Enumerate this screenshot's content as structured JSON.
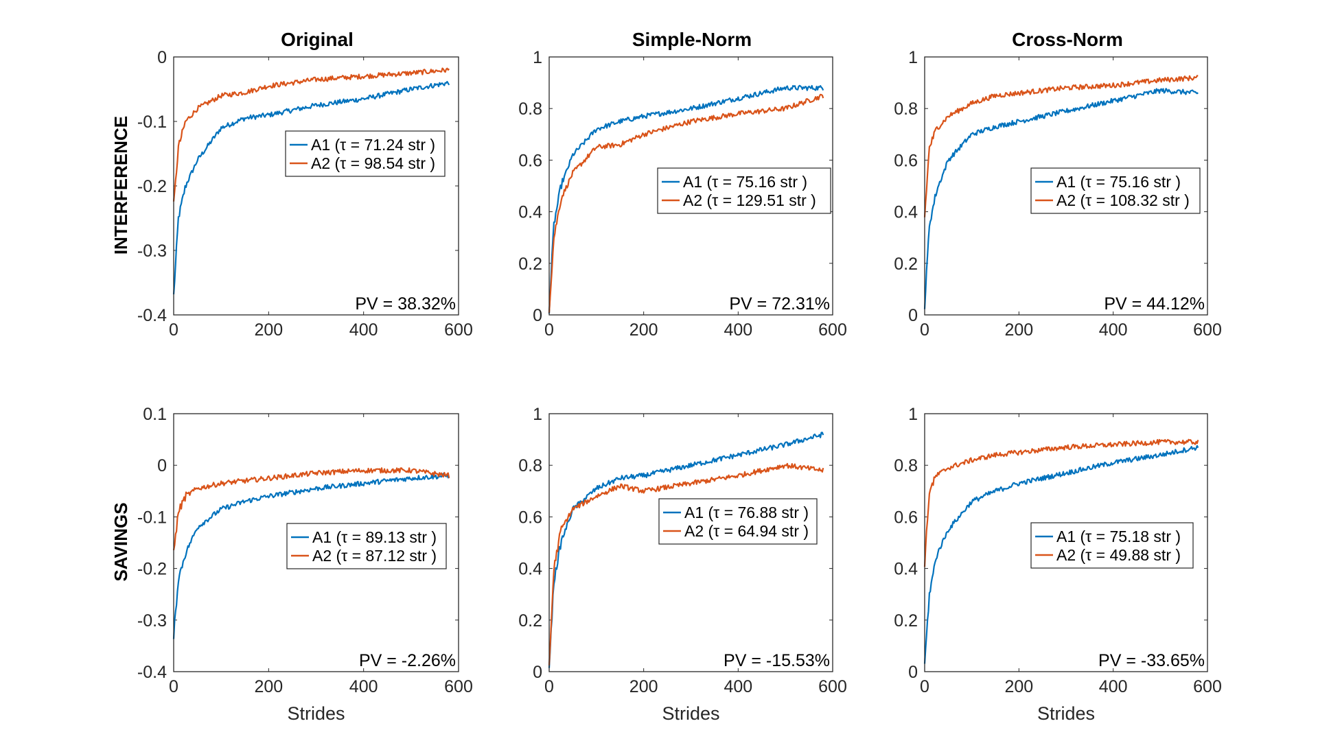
{
  "figure": {
    "row_labels": [
      "INTERFERENCE",
      "SAVINGS"
    ],
    "col_titles": [
      "Original",
      "Simple-Norm",
      "Cross-Norm"
    ],
    "xlabel": "Strides",
    "colors": {
      "A1": "#0072BD",
      "A2": "#D95319"
    }
  },
  "chart_data": [
    {
      "type": "line",
      "title": "Original",
      "row": "INTERFERENCE",
      "xlim": [
        0,
        600
      ],
      "ylim": [
        -0.4,
        0
      ],
      "yticks": [
        "-0.4",
        "-0.3",
        "-0.2",
        "-0.1",
        "0"
      ],
      "xticks": [
        "0",
        "200",
        "400",
        "600"
      ],
      "xlabel": "",
      "legend": [
        "A1 (τ = 71.24 str )",
        "A2 (τ = 98.54 str )"
      ],
      "legend_placement": "center-right",
      "pv_label": "PV = 38.32%",
      "series": [
        {
          "name": "A1",
          "x": [
            0,
            10,
            25,
            50,
            100,
            150,
            200,
            300,
            400,
            500,
            580
          ],
          "values": [
            -0.37,
            -0.25,
            -0.2,
            -0.16,
            -0.11,
            -0.095,
            -0.09,
            -0.075,
            -0.065,
            -0.05,
            -0.04
          ]
        },
        {
          "name": "A2",
          "x": [
            0,
            10,
            25,
            50,
            100,
            150,
            200,
            300,
            400,
            500,
            580
          ],
          "values": [
            -0.23,
            -0.14,
            -0.1,
            -0.08,
            -0.06,
            -0.055,
            -0.045,
            -0.035,
            -0.03,
            -0.025,
            -0.02
          ]
        }
      ]
    },
    {
      "type": "line",
      "title": "Simple-Norm",
      "row": "INTERFERENCE",
      "xlim": [
        0,
        600
      ],
      "ylim": [
        0,
        1
      ],
      "yticks": [
        "0",
        "0.2",
        "0.4",
        "0.6",
        "0.8",
        "1"
      ],
      "xticks": [
        "0",
        "200",
        "400",
        "600"
      ],
      "xlabel": "",
      "legend": [
        "A1 (τ = 75.16 str )",
        "A2 (τ = 129.51 str )"
      ],
      "legend_placement": "center-right",
      "pv_label": "PV = 72.31%",
      "series": [
        {
          "name": "A1",
          "x": [
            0,
            10,
            25,
            50,
            100,
            150,
            200,
            300,
            400,
            500,
            580
          ],
          "values": [
            0.02,
            0.35,
            0.5,
            0.62,
            0.72,
            0.75,
            0.77,
            0.8,
            0.84,
            0.88,
            0.88
          ]
        },
        {
          "name": "A2",
          "x": [
            0,
            10,
            25,
            50,
            100,
            150,
            200,
            300,
            400,
            500,
            580
          ],
          "values": [
            0.02,
            0.3,
            0.45,
            0.55,
            0.65,
            0.66,
            0.7,
            0.75,
            0.78,
            0.8,
            0.85
          ]
        }
      ]
    },
    {
      "type": "line",
      "title": "Cross-Norm",
      "row": "INTERFERENCE",
      "xlim": [
        0,
        600
      ],
      "ylim": [
        0,
        1
      ],
      "yticks": [
        "0",
        "0.2",
        "0.4",
        "0.6",
        "0.8",
        "1"
      ],
      "xticks": [
        "0",
        "200",
        "400",
        "600"
      ],
      "xlabel": "",
      "legend": [
        "A1 (τ = 75.16 str )",
        "A2 (τ = 108.32 str )"
      ],
      "legend_placement": "center-right",
      "pv_label": "PV = 44.12%",
      "series": [
        {
          "name": "A1",
          "x": [
            0,
            10,
            25,
            50,
            100,
            150,
            200,
            300,
            400,
            500,
            580
          ],
          "values": [
            0.03,
            0.35,
            0.48,
            0.6,
            0.7,
            0.73,
            0.75,
            0.79,
            0.83,
            0.87,
            0.86
          ]
        },
        {
          "name": "A2",
          "x": [
            0,
            10,
            25,
            50,
            100,
            150,
            200,
            300,
            400,
            500,
            580
          ],
          "values": [
            0.38,
            0.65,
            0.72,
            0.77,
            0.82,
            0.85,
            0.86,
            0.88,
            0.89,
            0.91,
            0.92
          ]
        }
      ]
    },
    {
      "type": "line",
      "title": "",
      "row": "SAVINGS",
      "xlim": [
        0,
        600
      ],
      "ylim": [
        -0.4,
        0.1
      ],
      "yticks": [
        "-0.4",
        "-0.3",
        "-0.2",
        "-0.1",
        "0",
        "0.1"
      ],
      "xticks": [
        "0",
        "200",
        "400",
        "600"
      ],
      "xlabel": "Strides",
      "legend": [
        "A1 (τ = 89.13 str )",
        "A2 (τ = 87.12 str )"
      ],
      "legend_placement": "center-right",
      "pv_label": "PV = -2.26%",
      "series": [
        {
          "name": "A1",
          "x": [
            0,
            10,
            25,
            50,
            100,
            150,
            200,
            300,
            400,
            500,
            580
          ],
          "values": [
            -0.33,
            -0.22,
            -0.17,
            -0.12,
            -0.085,
            -0.07,
            -0.06,
            -0.045,
            -0.035,
            -0.025,
            -0.02
          ]
        },
        {
          "name": "A2",
          "x": [
            0,
            10,
            25,
            50,
            100,
            150,
            200,
            300,
            400,
            500,
            580
          ],
          "values": [
            -0.17,
            -0.09,
            -0.06,
            -0.045,
            -0.035,
            -0.03,
            -0.025,
            -0.015,
            -0.01,
            -0.01,
            -0.02
          ]
        }
      ]
    },
    {
      "type": "line",
      "title": "",
      "row": "SAVINGS",
      "xlim": [
        0,
        600
      ],
      "ylim": [
        0,
        1
      ],
      "yticks": [
        "0",
        "0.2",
        "0.4",
        "0.6",
        "0.8",
        "1"
      ],
      "xticks": [
        "0",
        "200",
        "400",
        "600"
      ],
      "xlabel": "Strides",
      "legend": [
        "A1 (τ = 76.88 str )",
        "A2 (τ = 64.94 str )"
      ],
      "legend_placement": "center-right",
      "pv_label": "PV = -15.53%",
      "series": [
        {
          "name": "A1",
          "x": [
            0,
            10,
            25,
            50,
            100,
            150,
            200,
            300,
            400,
            500,
            580
          ],
          "values": [
            0.02,
            0.35,
            0.5,
            0.63,
            0.71,
            0.75,
            0.76,
            0.8,
            0.84,
            0.88,
            0.92
          ]
        },
        {
          "name": "A2",
          "x": [
            0,
            10,
            25,
            50,
            100,
            150,
            200,
            300,
            400,
            500,
            580
          ],
          "values": [
            0.02,
            0.4,
            0.55,
            0.63,
            0.68,
            0.72,
            0.7,
            0.73,
            0.76,
            0.8,
            0.78
          ]
        }
      ]
    },
    {
      "type": "line",
      "title": "",
      "row": "SAVINGS",
      "xlim": [
        0,
        600
      ],
      "ylim": [
        0,
        1
      ],
      "yticks": [
        "0",
        "0.2",
        "0.4",
        "0.6",
        "0.8",
        "1"
      ],
      "xticks": [
        "0",
        "200",
        "400",
        "600"
      ],
      "xlabel": "Strides",
      "legend": [
        "A1 (τ = 75.18 str )",
        "A2 (τ = 49.88 str )"
      ],
      "legend_placement": "center-right",
      "pv_label": "PV = -33.65%",
      "series": [
        {
          "name": "A1",
          "x": [
            0,
            10,
            25,
            50,
            100,
            150,
            200,
            300,
            400,
            500,
            580
          ],
          "values": [
            0.03,
            0.3,
            0.45,
            0.55,
            0.66,
            0.7,
            0.73,
            0.77,
            0.81,
            0.84,
            0.87
          ]
        },
        {
          "name": "A2",
          "x": [
            0,
            10,
            25,
            50,
            100,
            150,
            200,
            300,
            400,
            500,
            580
          ],
          "values": [
            0.42,
            0.7,
            0.76,
            0.79,
            0.82,
            0.84,
            0.85,
            0.87,
            0.88,
            0.89,
            0.89
          ]
        }
      ]
    }
  ]
}
